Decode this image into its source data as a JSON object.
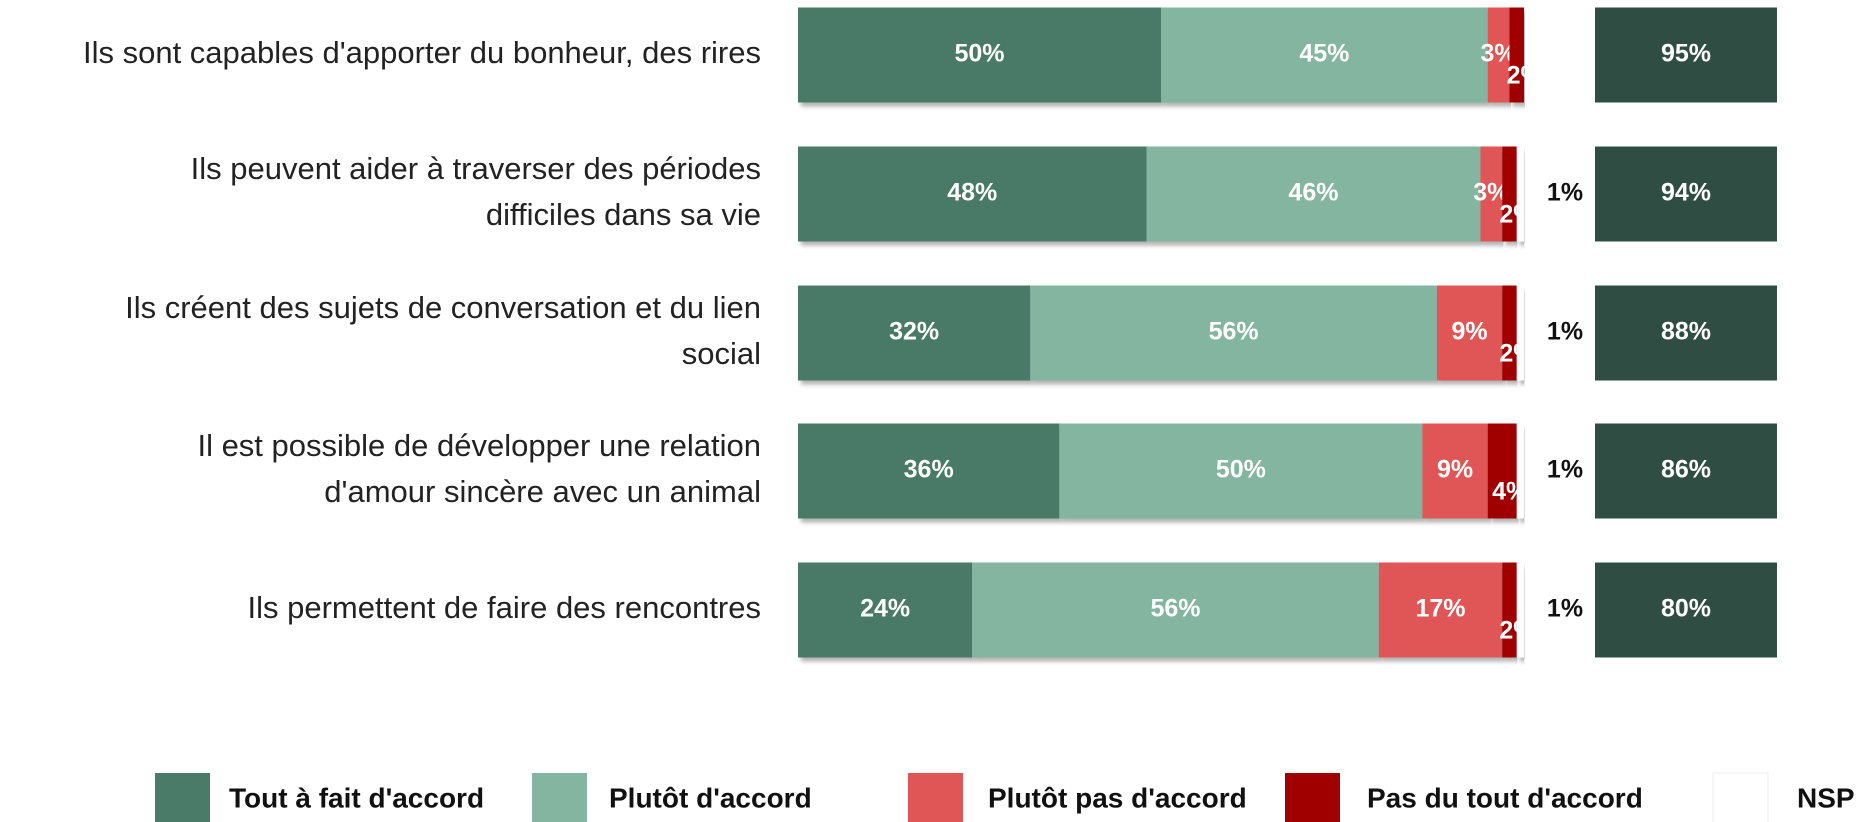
{
  "chart_data": {
    "type": "stacked-bar-horizontal",
    "categories": [
      "Ils sont capables d'apporter du bonheur, des rires",
      "Ils peuvent aider à traverser des périodes\ndifficiles dans sa vie",
      "Ils créent des sujets de conversation et du lien\nsocial",
      "Il est possible de développer une relation\nd'amour sincère avec un animal",
      "Ils permettent de faire des rencontres"
    ],
    "xlim": [
      0,
      100
    ],
    "series": [
      {
        "name": "Tout à fait d'accord",
        "color": "#4a7a68",
        "values": [
          50,
          48,
          32,
          36,
          24
        ],
        "value_labels": [
          "50%",
          "48%",
          "32%",
          "36%",
          "24%"
        ]
      },
      {
        "name": "Plutôt d'accord",
        "color": "#83b5a0",
        "values": [
          45,
          46,
          56,
          50,
          56
        ],
        "value_labels": [
          "45%",
          "46%",
          "56%",
          "50%",
          "56%"
        ]
      },
      {
        "name": "Plutôt pas d'accord",
        "color": "#e05555",
        "values": [
          3,
          3,
          9,
          9,
          17
        ],
        "value_labels": [
          "3%",
          "3%",
          "9%",
          "9%",
          "17%"
        ]
      },
      {
        "name": "Pas du tout d'accord",
        "color": "#a00000",
        "values": [
          2,
          2,
          2,
          4,
          2
        ],
        "value_labels": [
          "2%",
          "2%",
          "2%",
          "4%",
          "2%"
        ]
      },
      {
        "name": "NSP",
        "color": "#ffffff",
        "values": [
          null,
          1,
          1,
          1,
          1
        ],
        "value_labels": [
          null,
          "1%",
          "1%",
          "1%",
          "1%"
        ]
      }
    ],
    "totals": {
      "color": "#2f4d42",
      "values": [
        95,
        94,
        88,
        86,
        80
      ],
      "value_labels": [
        "95%",
        "94%",
        "88%",
        "86%",
        "80%"
      ]
    }
  }
}
